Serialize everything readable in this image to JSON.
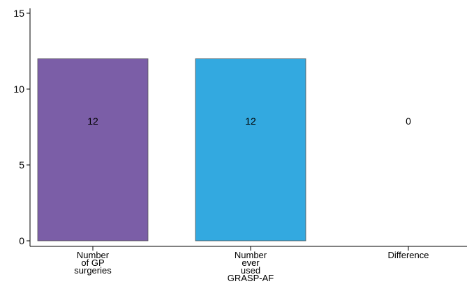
{
  "chart_data": {
    "type": "bar",
    "categories": [
      [
        "Number",
        "of GP",
        "surgeries"
      ],
      [
        "Number",
        "ever",
        "used",
        "GRASP-AF"
      ],
      [
        "Difference"
      ]
    ],
    "values": [
      12,
      12,
      0
    ],
    "data_labels": [
      "12",
      "12",
      "0"
    ],
    "bar_colors": [
      "#7b5ea7",
      "#33a9e0",
      "#ffffff"
    ],
    "ylim": [
      0,
      15
    ],
    "yticks": [
      0,
      5,
      10,
      15
    ],
    "ytick_labels": [
      "0",
      "5",
      "10",
      "15"
    ],
    "grid": false,
    "legend": "none",
    "title": "",
    "xlabel": "",
    "ylabel": ""
  }
}
